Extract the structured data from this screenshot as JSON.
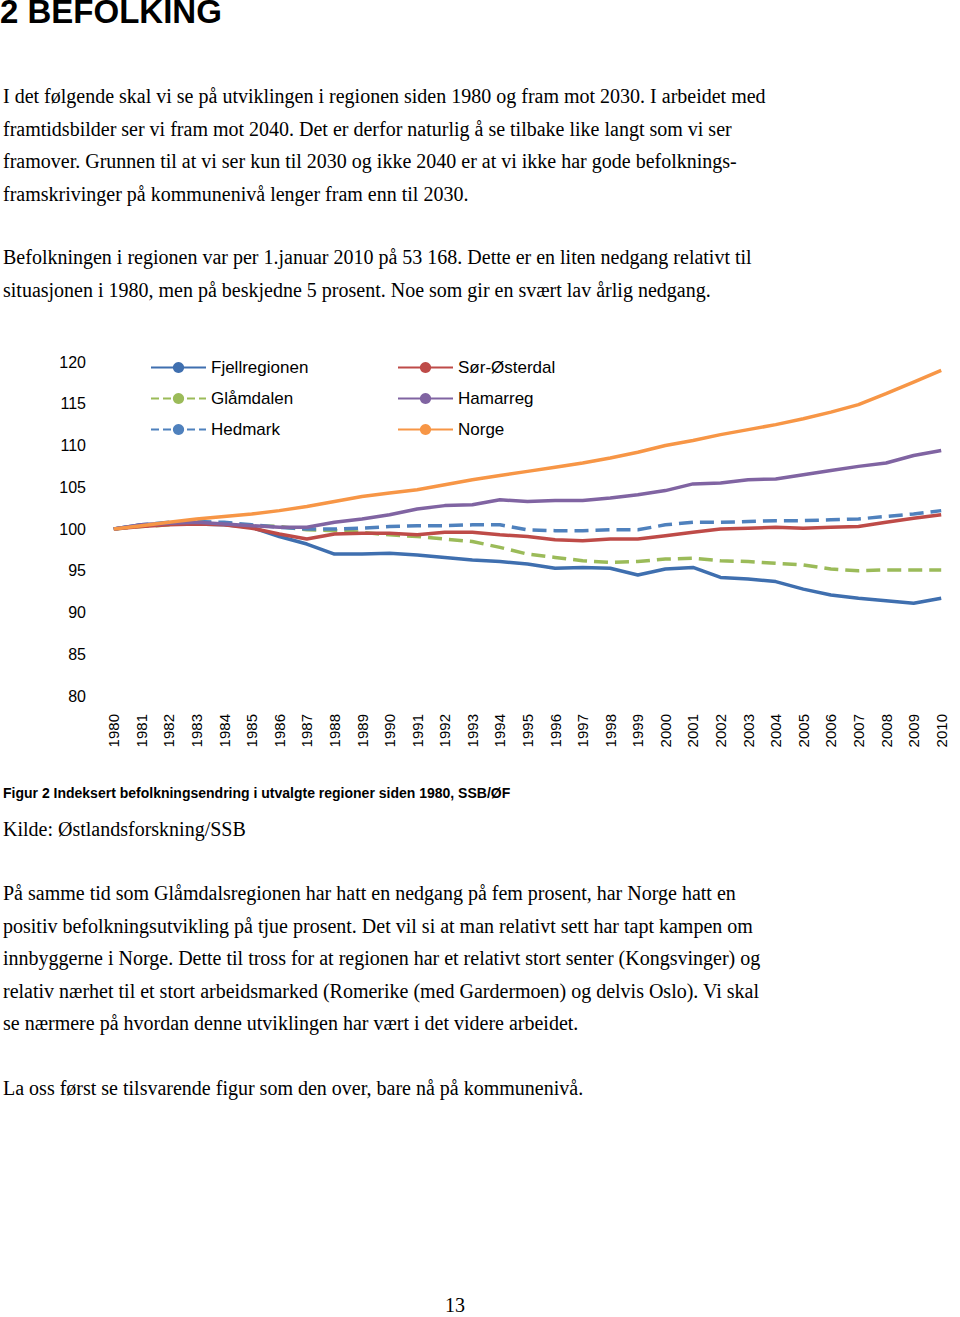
{
  "heading": "2 BEFOLKING",
  "paragraphs_before": [
    [
      "I det følgende skal vi se på utviklingen i regionen siden 1980 og fram mot 2030. I arbeidet med",
      "framtidsbilder ser vi fram mot 2040. Det er derfor naturlig å se tilbake like langt som vi ser",
      "framover. Grunnen til at vi ser kun til 2030 og ikke 2040 er at vi ikke har gode befolknings-",
      "framskrivinger på kommunenivå lenger fram enn til 2030."
    ],
    [
      "Befolkningen i regionen var per 1.januar 2010 på 53 168. Dette er en liten nedgang relativt til",
      "situasjonen i 1980, men på beskjedne 5 prosent. Noe som gir en svært lav årlig nedgang."
    ]
  ],
  "chart_data": {
    "type": "line",
    "categories": [
      "1980",
      "1981",
      "1982",
      "1983",
      "1984",
      "1985",
      "1986",
      "1987",
      "1988",
      "1989",
      "1990",
      "1991",
      "1992",
      "1993",
      "1994",
      "1995",
      "1996",
      "1997",
      "1998",
      "1999",
      "2000",
      "2001",
      "2002",
      "2003",
      "2004",
      "2005",
      "2006",
      "2007",
      "2008",
      "2009",
      "2010"
    ],
    "series": [
      {
        "name": "Fjellregionen",
        "color": "#3f6faf",
        "line_style": "solid",
        "values": [
          100,
          100.5,
          100.6,
          100.6,
          100.5,
          100.2,
          99.1,
          98.2,
          97.0,
          97.0,
          97.1,
          96.9,
          96.6,
          96.3,
          96.1,
          95.8,
          95.3,
          95.4,
          95.3,
          94.5,
          95.2,
          95.4,
          94.2,
          94.0,
          93.7,
          92.8,
          92.1,
          91.7,
          91.4,
          91.1,
          91.7
        ]
      },
      {
        "name": "Glåmdalen",
        "color": "#9bbb59",
        "line_style": "dashed",
        "values": [
          100,
          100.3,
          100.5,
          100.7,
          100.6,
          100.4,
          100.3,
          99.9,
          99.8,
          99.6,
          99.3,
          99.1,
          98.8,
          98.5,
          97.8,
          97.0,
          96.6,
          96.2,
          96.0,
          96.1,
          96.4,
          96.5,
          96.2,
          96.1,
          95.9,
          95.7,
          95.2,
          95.0,
          95.1,
          95.1,
          95.1
        ]
      },
      {
        "name": "Hedmark",
        "color": "#4f81bd",
        "line_style": "dashed",
        "values": [
          100,
          100.5,
          100.8,
          100.9,
          100.8,
          100.5,
          100.2,
          100.0,
          100.0,
          100.1,
          100.3,
          100.4,
          100.4,
          100.5,
          100.5,
          99.9,
          99.8,
          99.8,
          99.9,
          99.9,
          100.5,
          100.8,
          100.8,
          100.9,
          101.0,
          101.0,
          101.1,
          101.2,
          101.5,
          101.8,
          102.2
        ]
      },
      {
        "name": "Sør-Østerdal",
        "color": "#be4b48",
        "line_style": "solid",
        "values": [
          100,
          100.3,
          100.5,
          100.6,
          100.5,
          100.1,
          99.4,
          98.8,
          99.4,
          99.5,
          99.5,
          99.3,
          99.6,
          99.6,
          99.3,
          99.1,
          98.7,
          98.6,
          98.8,
          98.8,
          99.2,
          99.6,
          100.0,
          100.1,
          100.2,
          100.1,
          100.2,
          100.3,
          100.8,
          101.3,
          101.7
        ]
      },
      {
        "name": "Hamarreg",
        "color": "#8064a2",
        "line_style": "solid",
        "values": [
          100,
          100.5,
          100.7,
          100.8,
          100.6,
          100.4,
          100.2,
          100.2,
          100.8,
          101.2,
          101.7,
          102.4,
          102.8,
          102.9,
          103.5,
          103.3,
          103.4,
          103.4,
          103.7,
          104.1,
          104.6,
          105.4,
          105.5,
          105.9,
          106.0,
          106.5,
          107.0,
          107.5,
          107.9,
          108.8,
          109.4
        ]
      },
      {
        "name": "Norge",
        "color": "#f79646",
        "line_style": "solid",
        "values": [
          100,
          100.4,
          100.8,
          101.2,
          101.5,
          101.8,
          102.2,
          102.7,
          103.3,
          103.9,
          104.3,
          104.7,
          105.3,
          105.9,
          106.4,
          106.9,
          107.4,
          107.9,
          108.5,
          109.2,
          110.0,
          110.6,
          111.3,
          111.9,
          112.5,
          113.2,
          114.0,
          114.9,
          116.2,
          117.6,
          119.0
        ]
      }
    ],
    "ylim": [
      80,
      120
    ],
    "yticks": [
      80,
      85,
      90,
      95,
      100,
      105,
      110,
      115,
      120
    ],
    "grid": false,
    "legend": "top-left"
  },
  "caption": "Figur 2 Indeksert befolkningsendring i utvalgte regioner siden 1980, SSB/ØF",
  "source": "Kilde: Østlandsforskning/SSB",
  "paragraphs_after": [
    [
      "På samme tid som Glåmdalsregionen har hatt en nedgang på fem prosent, har Norge hatt en",
      "positiv befolkningsutvikling på tjue prosent. Det vil si at man relativt sett har tapt kampen om",
      "innbyggerne i Norge. Dette til tross for at regionen har et relativt stort senter (Kongsvinger) og",
      "relativ nærhet til et stort arbeidsmarked (Romerike (med Gardermoen) og delvis Oslo). Vi skal",
      "se nærmere på hvordan denne utviklingen har vært i det videre arbeidet."
    ],
    [
      "La oss først se tilsvarende figur som den over, bare nå på kommunenivå."
    ]
  ],
  "page_number": "13"
}
